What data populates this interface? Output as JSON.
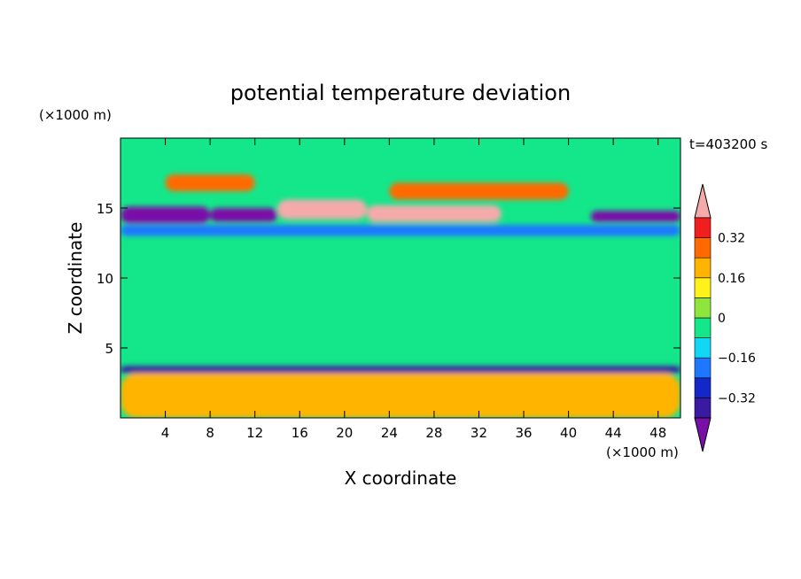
{
  "chart_data": {
    "type": "heatmap",
    "title": "potential temperature deviation",
    "xlabel": "X coordinate",
    "ylabel": "Z coordinate",
    "x_unit": "(×1000 m)",
    "y_unit": "(×1000 m)",
    "time_label": "t=403200 s",
    "xlim": [
      0,
      50
    ],
    "ylim": [
      0,
      20
    ],
    "x_ticks": [
      4,
      8,
      12,
      16,
      20,
      24,
      28,
      32,
      36,
      40,
      44,
      48
    ],
    "y_ticks": [
      5,
      10,
      15
    ],
    "colorbar": {
      "levels": [
        -0.4,
        -0.32,
        -0.24,
        -0.16,
        -0.08,
        0,
        0.08,
        0.16,
        0.24,
        0.32,
        0.4
      ],
      "tick_labels": [
        "0.32",
        "0.16",
        "0",
        "−0.16",
        "−0.32"
      ],
      "tick_values": [
        0.32,
        0.16,
        0,
        -0.16,
        -0.32
      ],
      "colors": [
        "#7a0fa8",
        "#3a1aa0",
        "#1428c8",
        "#1e78ff",
        "#11d7f5",
        "#14e68a",
        "#8ee63c",
        "#fff21a",
        "#ffb400",
        "#ff6a00",
        "#f01e1e",
        "#f5aaaa"
      ],
      "extend": "both"
    },
    "features": [
      {
        "x": [
          0,
          8
        ],
        "z": [
          13.9,
          15.1
        ],
        "value": -0.45
      },
      {
        "x": [
          8,
          14
        ],
        "z": [
          14.0,
          15.0
        ],
        "value": -0.45
      },
      {
        "x": [
          42,
          50
        ],
        "z": [
          14.0,
          14.8
        ],
        "value": -0.45
      },
      {
        "x": [
          14,
          22
        ],
        "z": [
          14.2,
          15.6
        ],
        "value": 0.45
      },
      {
        "x": [
          22,
          34
        ],
        "z": [
          14.0,
          15.2
        ],
        "value": 0.45
      },
      {
        "x": [
          4,
          12
        ],
        "z": [
          16.2,
          17.4
        ],
        "value": 0.3
      },
      {
        "x": [
          24,
          40
        ],
        "z": [
          15.6,
          16.8
        ],
        "value": 0.3
      },
      {
        "x": [
          0,
          50
        ],
        "z": [
          13.0,
          13.8
        ],
        "value": -0.2
      },
      {
        "x": [
          0,
          50
        ],
        "z": [
          3.2,
          3.7
        ],
        "value": -0.36
      },
      {
        "x": [
          0,
          50
        ],
        "z": [
          0.0,
          3.2
        ],
        "value": 0.2
      }
    ]
  }
}
